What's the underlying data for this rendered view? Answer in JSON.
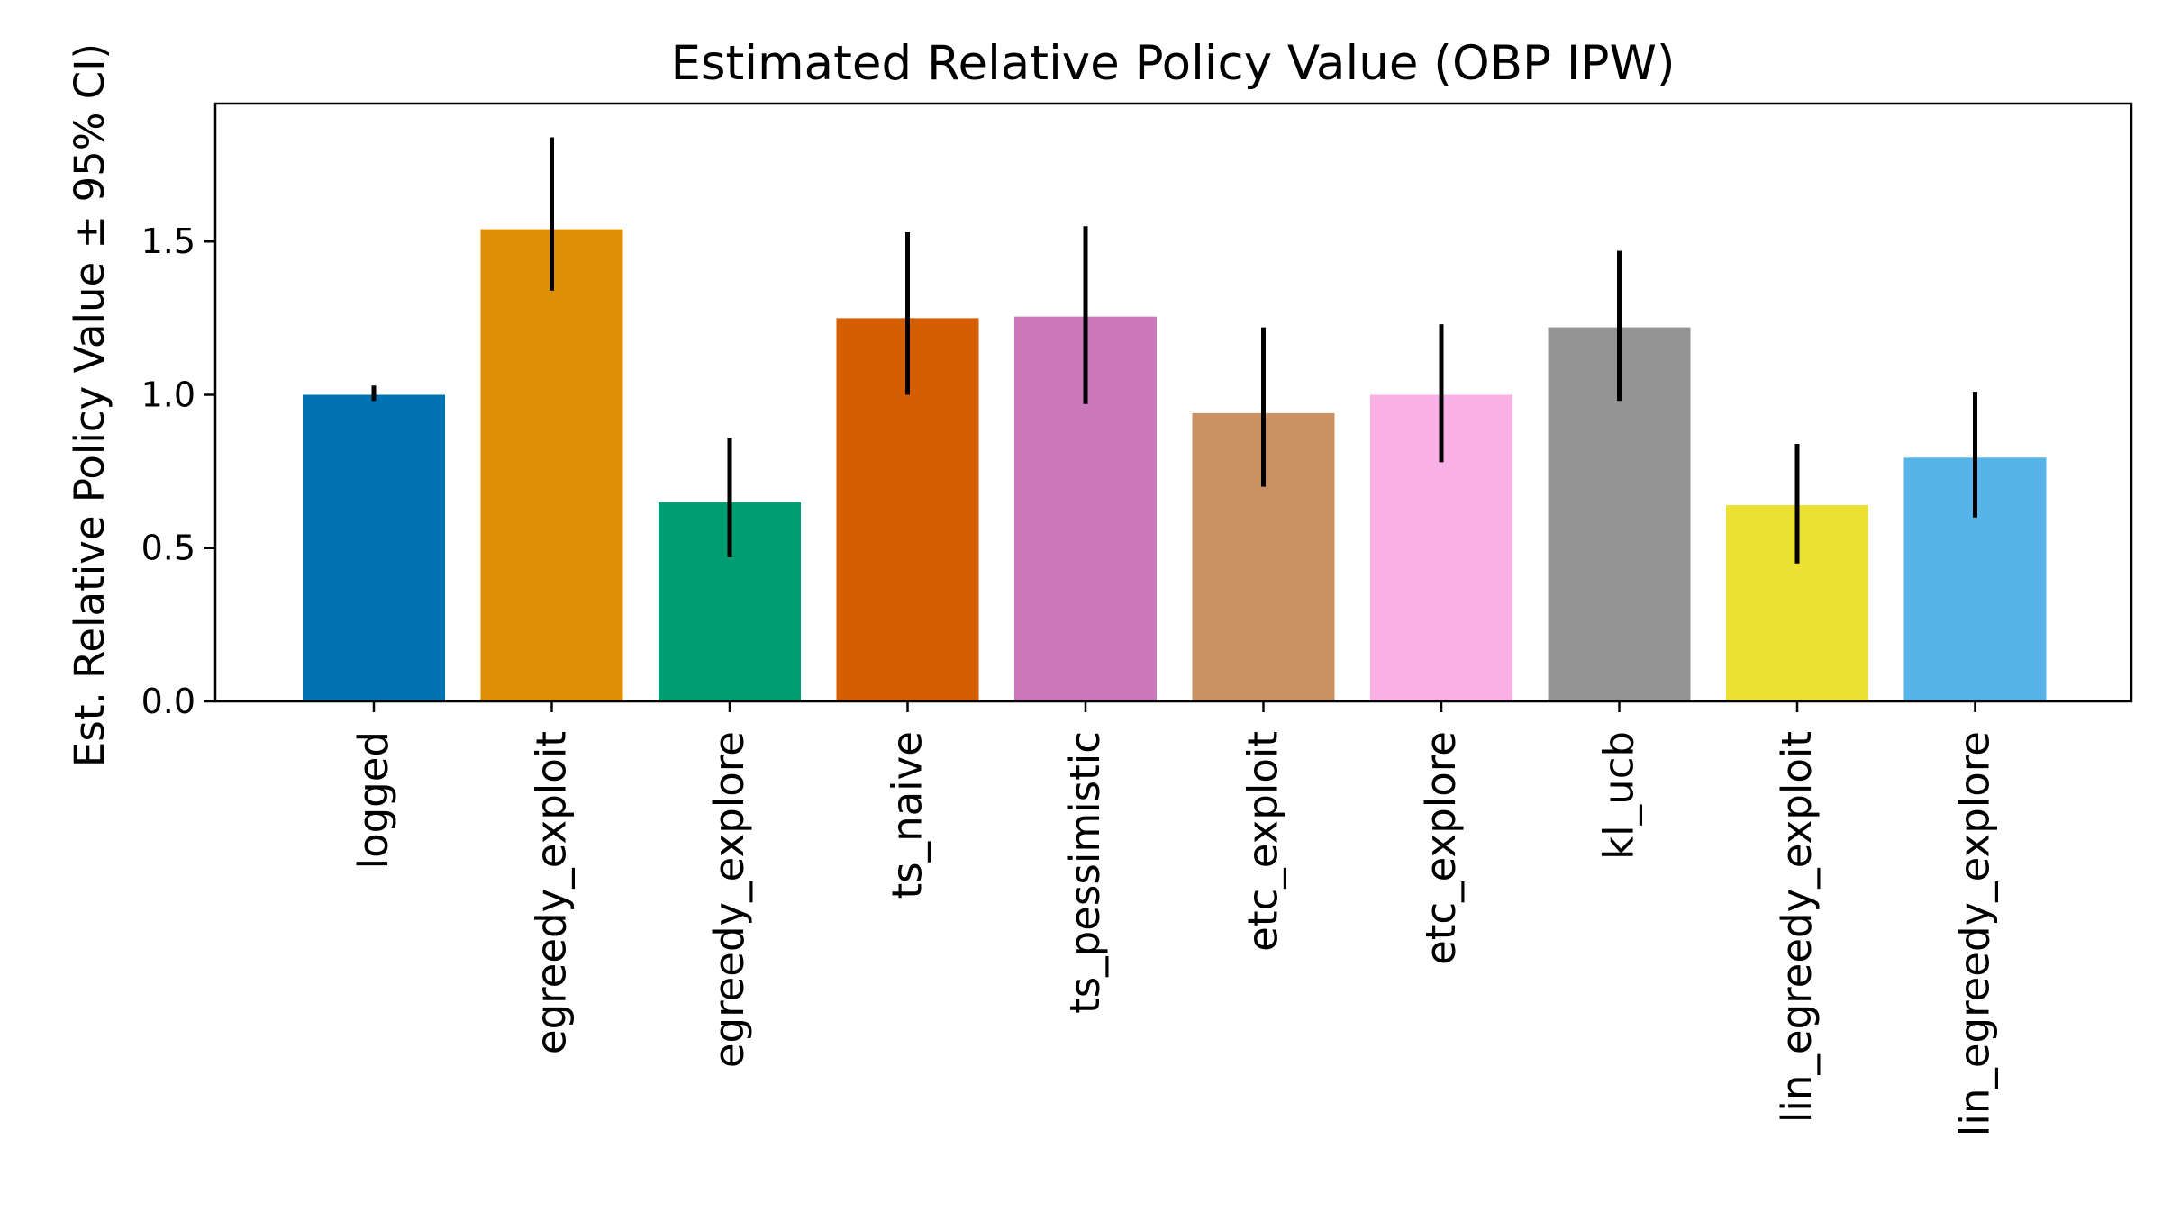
{
  "chart_data": {
    "type": "bar",
    "title": "Estimated Relative Policy Value (OBP IPW)",
    "xlabel": "",
    "ylabel": "Est. Relative Policy Value ± 95% CI)",
    "ylim": [
      0,
      1.95
    ],
    "yticks": [
      0.0,
      0.5,
      1.0,
      1.5
    ],
    "ytick_labels": [
      "0.0",
      "0.5",
      "1.0",
      "1.5"
    ],
    "grid": false,
    "legend": "none",
    "categories": [
      "logged",
      "egreedy_exploit",
      "egreedy_explore",
      "ts_naive",
      "ts_pessimistic",
      "etc_exploit",
      "etc_explore",
      "kl_ucb",
      "lin_egreedy_exploit",
      "lin_egreedy_explore"
    ],
    "values": [
      1.0,
      1.54,
      0.65,
      1.25,
      1.255,
      0.94,
      1.0,
      1.22,
      0.64,
      0.795
    ],
    "ci_lower": [
      0.98,
      1.34,
      0.47,
      1.0,
      0.97,
      0.7,
      0.78,
      0.98,
      0.45,
      0.6
    ],
    "ci_upper": [
      1.03,
      1.84,
      0.86,
      1.53,
      1.55,
      1.22,
      1.23,
      1.47,
      0.84,
      1.01
    ],
    "colors": [
      "#0173b2",
      "#de8f05",
      "#029e73",
      "#d55e00",
      "#cc78bc",
      "#ca9161",
      "#fbafe4",
      "#949494",
      "#ece133",
      "#56b4e9"
    ],
    "errorbar_color": "#000000"
  }
}
